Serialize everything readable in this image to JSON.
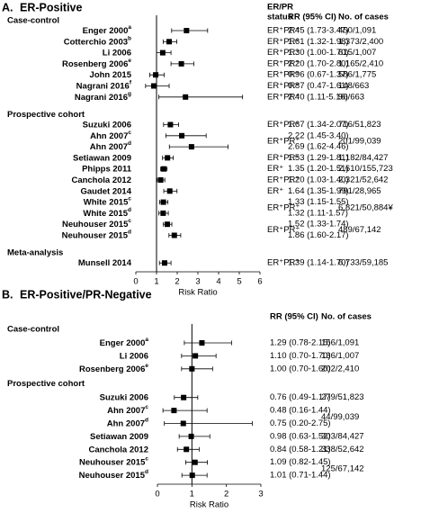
{
  "chart_data": [
    {
      "type": "forest",
      "panel": "A.",
      "title": "ER-Positive",
      "headers": {
        "status": [
          "ER/PR",
          "status"
        ],
        "rr": "RR (95% CI)",
        "cases": "No. of cases"
      },
      "xlabel": "Risk Ratio",
      "xlim": [
        0,
        6
      ],
      "xticks": [
        0,
        1,
        2,
        3,
        4,
        5,
        6
      ],
      "reference": 1,
      "color": "#000000",
      "groups": [
        {
          "name": "Case-control",
          "rows": [
            {
              "name": "Enger 2000",
              "note": "a",
              "status": "ER⁺PR⁺",
              "value": 2.45,
              "lower": 1.73,
              "upper": 3.47,
              "ci_label": "2.45 (1.73-3.47)",
              "cases": "450/1,091"
            },
            {
              "name": "Cotterchio 2003",
              "note": "b",
              "status": "ER⁺PR⁺",
              "value": 1.61,
              "lower": 1.32,
              "upper": 1.98,
              "ci_label": "1.61 (1.32-1.98)",
              "cases": "1,373/2,400"
            },
            {
              "name": "Li 2006",
              "note": null,
              "status": "ER⁺PR⁺",
              "value": 1.3,
              "lower": 1.0,
              "upper": 1.7,
              "ci_label": "1.30 (1.00-1.70)",
              "cases": "615/1,007"
            },
            {
              "name": "Rosenberg 2006",
              "note": "e",
              "status": "ER⁺PR⁺",
              "value": 2.2,
              "lower": 1.7,
              "upper": 2.8,
              "ci_label": "2.20 (1.70-2.80)",
              "cases": "1,165/2,410"
            },
            {
              "name": "John 2015",
              "note": null,
              "status": "ER⁺PR⁺",
              "value": 0.96,
              "lower": 0.67,
              "upper": 1.37,
              "ci_label": "0.96 (0.67-1.37)",
              "cases": "586/1,775"
            },
            {
              "name": "Nagrani 2016",
              "note": "f",
              "status": "ER⁺PR⁺",
              "value": 0.87,
              "lower": 0.47,
              "upper": 1.61,
              "ci_label": "0.87 (0.47-1.61)",
              "cases": "148/663"
            },
            {
              "name": "Nagrani 2016",
              "note": "g",
              "status": "ER⁺PR⁺",
              "value": 2.4,
              "lower": 1.11,
              "upper": 5.16,
              "ci_label": "2.40 (1.11-5.16)",
              "cases": "96/663"
            }
          ]
        },
        {
          "name": "Prospective cohort",
          "rows": [
            {
              "name": "Suzuki 2006",
              "note": null,
              "status": "ER⁺PR⁺",
              "value": 1.67,
              "lower": 1.34,
              "upper": 2.07,
              "ci_label": "1.67 (1.34-2.07)",
              "cases": "716/51,823"
            },
            {
              "name": "Ahn 2007",
              "note": "c",
              "status": "ER⁺PR⁺",
              "value": 2.22,
              "lower": 1.45,
              "upper": 3.4,
              "ci_label": "2.22 (1.45-3.40)",
              "cases": "201/99,039"
            },
            {
              "name": "Ahn 2007",
              "note": "d",
              "status": null,
              "value": 2.69,
              "lower": 1.62,
              "upper": 4.46,
              "ci_label": "2.69 (1.62-4.46)",
              "cases": null
            },
            {
              "name": "Setiawan 2009",
              "note": null,
              "status": "ER⁺PR⁺",
              "value": 1.53,
              "lower": 1.29,
              "upper": 1.81,
              "ci_label": "1.53 (1.29-1.81)",
              "cases": "1,182/84,427"
            },
            {
              "name": "Phipps 2011",
              "note": null,
              "status": "ER⁺",
              "value": 1.35,
              "lower": 1.2,
              "upper": 1.51,
              "ci_label": "1.35 (1.20-1.51)",
              "cases": "2,610/155,723"
            },
            {
              "name": "Canchola 2012",
              "note": null,
              "status": "ER⁺PR⁺",
              "value": 1.2,
              "lower": 1.03,
              "upper": 1.4,
              "ci_label": "1.20 (1.03-1.40)",
              "cases": "2,321/52,642"
            },
            {
              "name": "Gaudet 2014",
              "note": null,
              "status": "ER⁺",
              "value": 1.64,
              "lower": 1.35,
              "upper": 1.99,
              "ci_label": "1.64 (1.35-1.99)",
              "cases": "791/28,965"
            },
            {
              "name": "White 2015",
              "note": "c",
              "status": "ER⁺PR⁺",
              "value": 1.33,
              "lower": 1.15,
              "upper": 1.55,
              "ci_label": "1.33 (1.15-1.55)",
              "cases": "6,821/50,884¥"
            },
            {
              "name": "White 2015",
              "note": "d",
              "status": null,
              "value": 1.32,
              "lower": 1.11,
              "upper": 1.57,
              "ci_label": "1.32 (1.11-1.57)",
              "cases": null
            },
            {
              "name": "Neuhouser 2015",
              "note": "c",
              "status": "ER⁺PR⁺",
              "value": 1.52,
              "lower": 1.33,
              "upper": 1.74,
              "ci_label": "1.52 (1.33-1.74)",
              "cases": "489/67,142"
            },
            {
              "name": "Neuhouser 2015",
              "note": "d",
              "status": null,
              "value": 1.86,
              "lower": 1.6,
              "upper": 2.17,
              "ci_label": "1.86 (1.60-2.17)",
              "cases": null
            }
          ]
        },
        {
          "name": "Meta-analysis",
          "rows": [
            {
              "name": "Munsell 2014",
              "note": null,
              "status": "ER⁺PR⁺",
              "value": 1.39,
              "lower": 1.14,
              "upper": 1.7,
              "ci_label": "1.39 (1.14-1.70)",
              "cases": "6,733/59,185"
            }
          ]
        }
      ]
    },
    {
      "type": "forest",
      "panel": "B.",
      "title": "ER-Positive/PR-Negative",
      "headers": {
        "rr": "RR (95% CI)",
        "cases": "No. of cases"
      },
      "xlabel": "Risk Ratio",
      "xlim": [
        0,
        3
      ],
      "xticks": [
        0,
        1,
        2,
        3
      ],
      "reference": 1,
      "color": "#000000",
      "groups": [
        {
          "name": "Case-control",
          "rows": [
            {
              "name": "Enger 2000",
              "note": "a",
              "value": 1.29,
              "lower": 0.78,
              "upper": 2.15,
              "ci_label": "1.29 (0.78-2.15)",
              "cases": "156/1,091"
            },
            {
              "name": "Li 2006",
              "note": null,
              "value": 1.1,
              "lower": 0.7,
              "upper": 1.7,
              "ci_label": "1.10 (0.70-1.70)",
              "cases": "136/1,007"
            },
            {
              "name": "Rosenberg 2006",
              "note": "e",
              "value": 1.0,
              "lower": 0.7,
              "upper": 1.6,
              "ci_label": "1.00 (0.70-1.60)",
              "cases": "202/2,410"
            }
          ]
        },
        {
          "name": "Prospective cohort",
          "rows": [
            {
              "name": "Suzuki 2006",
              "note": null,
              "value": 0.76,
              "lower": 0.49,
              "upper": 1.17,
              "ci_label": "0.76 (0.49-1.17)",
              "cases": "279/51,823"
            },
            {
              "name": "Ahn 2007",
              "note": "c",
              "value": 0.48,
              "lower": 0.16,
              "upper": 1.44,
              "ci_label": "0.48 (0.16-1.44)",
              "cases": "44/99,039"
            },
            {
              "name": "Ahn 2007",
              "note": "d",
              "value": 0.75,
              "lower": 0.2,
              "upper": 2.75,
              "ci_label": "0.75 (0.20-2.75)",
              "cases": null
            },
            {
              "name": "Setiawan 2009",
              "note": null,
              "value": 0.98,
              "lower": 0.63,
              "upper": 1.52,
              "ci_label": "0.98 (0.63-1.52)",
              "cases": "303/84,427"
            },
            {
              "name": "Canchola 2012",
              "note": null,
              "value": 0.84,
              "lower": 0.58,
              "upper": 1.21,
              "ci_label": "0.84 (0.58-1.21)",
              "cases": "338/52,642"
            },
            {
              "name": "Neuhouser 2015",
              "note": "c",
              "value": 1.09,
              "lower": 0.82,
              "upper": 1.45,
              "ci_label": "1.09 (0.82-1.45)",
              "cases": "125/67,142"
            },
            {
              "name": "Neuhouser 2015",
              "note": "d",
              "value": 1.01,
              "lower": 0.71,
              "upper": 1.44,
              "ci_label": "1.01 (0.71-1.44)",
              "cases": null
            }
          ]
        }
      ]
    }
  ]
}
